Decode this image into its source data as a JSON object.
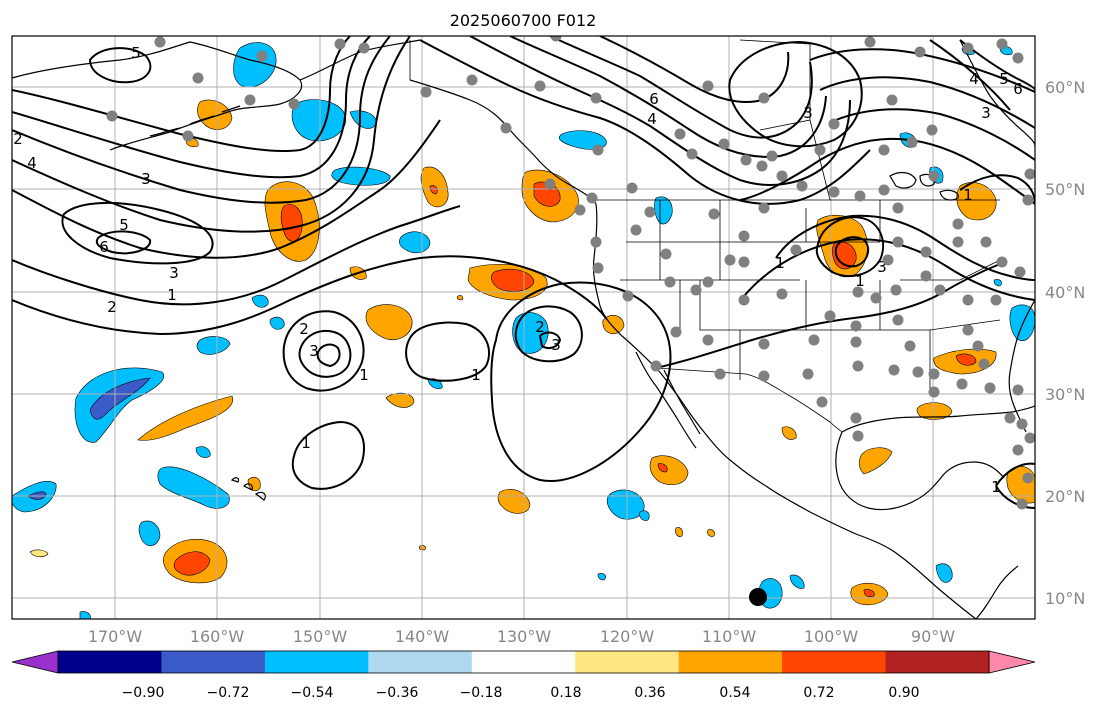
{
  "title": "2025060700 F012",
  "map": {
    "projection": "plate-carree",
    "lon_range": [
      -180,
      -80
    ],
    "lat_range": [
      8,
      65
    ],
    "gridlines": true,
    "lon_labels": [
      "170°W",
      "160°W",
      "150°W",
      "140°W",
      "130°W",
      "120°W",
      "110°W",
      "100°W",
      "90°W"
    ],
    "lat_labels": [
      "60°N",
      "50°N",
      "40°N",
      "30°N",
      "20°N",
      "10°N"
    ],
    "features": [
      "coastlines",
      "country-borders",
      "us-state-borders"
    ],
    "contour_labels": [
      "2",
      "4",
      "3",
      "5",
      "6",
      "3",
      "2",
      "1",
      "5",
      "4",
      "6",
      "3",
      "2",
      "3",
      "1",
      "1",
      "1",
      "2",
      "3",
      "1",
      "5",
      "6",
      "4",
      "3",
      "1",
      "3",
      "1",
      "1"
    ],
    "station_markers": "gray-dots",
    "special_marker": "black-dot"
  },
  "colorbar": {
    "ticks": [
      "−0.90",
      "−0.72",
      "−0.54",
      "−0.36",
      "−0.18",
      "0.18",
      "0.36",
      "0.54",
      "0.72",
      "0.90"
    ],
    "colors": [
      "#9932cc",
      "#00008b",
      "#3a5bc8",
      "#00bfff",
      "#add8f0",
      "#ffffff",
      "#ffe680",
      "#ffa500",
      "#ff4500",
      "#b22222",
      "#ff88aa"
    ],
    "extend": "both"
  }
}
